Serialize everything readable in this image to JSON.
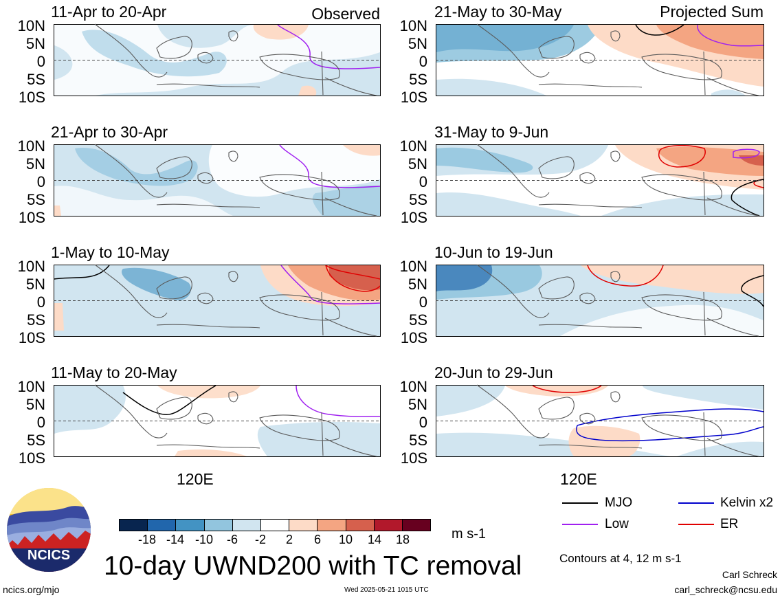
{
  "chart_data": {
    "type": "heatmap",
    "title": "10-day UWND200 with TC removal",
    "variable": "UWND200",
    "units": "m s-1",
    "colorbar": {
      "tick_labels": [
        "-18",
        "-14",
        "-10",
        "-6",
        "-2",
        "2",
        "6",
        "10",
        "14",
        "18"
      ],
      "colors": [
        "#08254f",
        "#2166ac",
        "#4393c3",
        "#92c5de",
        "#d1e5f0",
        "#ffffff",
        "#fddbc7",
        "#f4a582",
        "#d6604d",
        "#b2182b",
        "#67001f"
      ]
    },
    "latitude_ticks": [
      "10N",
      "5N",
      "0",
      "5S",
      "10S"
    ],
    "longitude_label": "120E",
    "observed_label": "Observed",
    "projected_label": "Projected Sum",
    "panels": [
      {
        "period": "11-Apr to 20-Apr",
        "column": "Observed"
      },
      {
        "period": "21-Apr to 30-Apr",
        "column": "Observed"
      },
      {
        "period": "1-May to 10-May",
        "column": "Observed"
      },
      {
        "period": "11-May to 20-May",
        "column": "Observed"
      },
      {
        "period": "21-May to 30-May",
        "column": "Projected Sum"
      },
      {
        "period": "31-May to 9-Jun",
        "column": "Projected Sum"
      },
      {
        "period": "10-Jun to 19-Jun",
        "column": "Projected Sum"
      },
      {
        "period": "20-Jun to 29-Jun",
        "column": "Projected Sum"
      }
    ],
    "legend": [
      {
        "label": "MJO",
        "color": "#000000"
      },
      {
        "label": "Kelvin x2",
        "color": "#0000cc"
      },
      {
        "label": "Low",
        "color": "#a020f0"
      },
      {
        "label": "ER",
        "color": "#e00000"
      }
    ],
    "contour_note": "Contours at 4, 12 m s-1"
  },
  "logo": {
    "text": "NCICS"
  },
  "footer": {
    "site": "ncics.org/mjo",
    "timestamp": "Wed 2025-05-21 1015 UTC",
    "author": "Carl Schreck",
    "email": "carl_schreck@ncsu.edu"
  }
}
